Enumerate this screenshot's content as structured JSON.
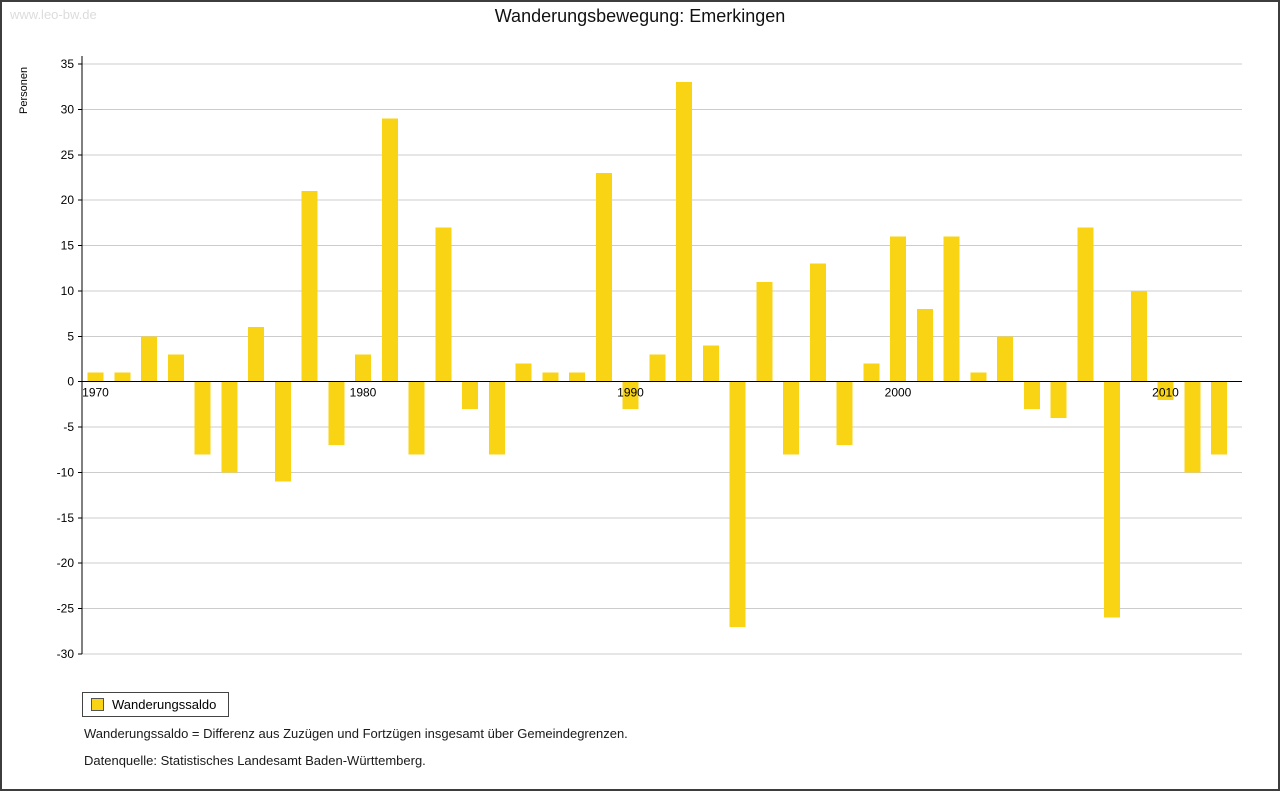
{
  "watermark": "www.leo-bw.de",
  "title": "Wanderungsbewegung: Emerkingen",
  "legend": {
    "label": "Wanderungssaldo"
  },
  "notes": {
    "definition": "Wanderungssaldo = Differenz aus Zuzügen und Fortzügen insgesamt über Gemeindegrenzen.",
    "source": "Datenquelle: Statistisches Landesamt Baden-Württemberg."
  },
  "chart_data": {
    "type": "bar",
    "title": "Wanderungsbewegung: Emerkingen",
    "ylabel": "Personen",
    "series_name": "Wanderungssaldo",
    "years": [
      1970,
      1971,
      1972,
      1973,
      1974,
      1975,
      1976,
      1977,
      1978,
      1979,
      1980,
      1981,
      1982,
      1983,
      1984,
      1985,
      1986,
      1987,
      1988,
      1989,
      1990,
      1991,
      1992,
      1993,
      1994,
      1995,
      1996,
      1997,
      1998,
      1999,
      2000,
      2001,
      2002,
      2003,
      2004,
      2005,
      2006,
      2007,
      2008,
      2009,
      2010,
      2011,
      2012
    ],
    "values": [
      1,
      1,
      5,
      3,
      -8,
      -10,
      6,
      -11,
      21,
      -7,
      3,
      29,
      -8,
      17,
      -3,
      -8,
      2,
      1,
      1,
      23,
      -3,
      3,
      33,
      4,
      -27,
      11,
      -8,
      13,
      -7,
      2,
      16,
      8,
      16,
      1,
      5,
      -3,
      -4,
      17,
      -26,
      10,
      -2,
      -10,
      -8
    ],
    "ylim": [
      -30,
      35
    ],
    "ytick_step": 5,
    "xticks": [
      1970,
      1980,
      1990,
      2000,
      2010
    ],
    "grid": true,
    "legend_position": "bottom-left",
    "bar_color": "#F8D414",
    "grid_color": "#cccccc",
    "axis_color": "#000000",
    "tick_label_color": "#000000"
  }
}
